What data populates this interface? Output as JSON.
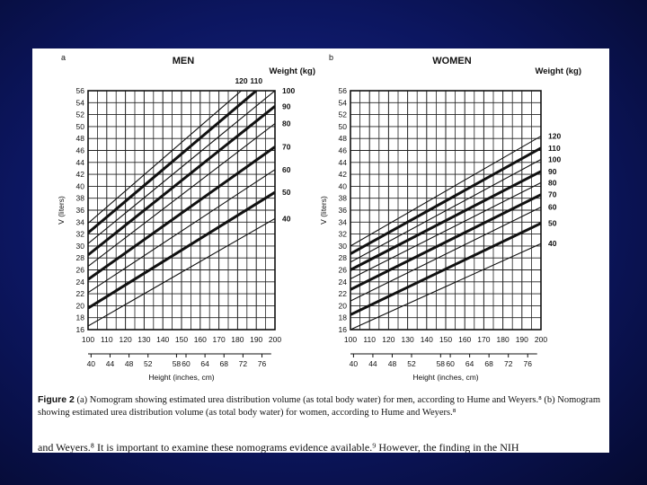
{
  "colors": {
    "slide_background": "#0c1660",
    "paper": "#ffffff",
    "ink": "#111111"
  },
  "chart_data": [
    {
      "type": "line",
      "panel_label": "a",
      "title": "MEN",
      "xlabel": "Height (inches, cm)",
      "ylabel": "V (liters)",
      "legend_title": "Weight (kg)",
      "xlim": [
        100,
        200
      ],
      "ylim": [
        16,
        56
      ],
      "x_ticks_cm": [
        "100",
        "110",
        "120",
        "130",
        "140",
        "150",
        "160",
        "170",
        "180",
        "190",
        "200"
      ],
      "x_ticks_inches": [
        "40",
        "44",
        "48",
        "52",
        "58",
        "60",
        "64",
        "68",
        "72",
        "76"
      ],
      "y_ticks": [
        "16",
        "18",
        "20",
        "22",
        "24",
        "26",
        "28",
        "30",
        "32",
        "34",
        "36",
        "38",
        "40",
        "42",
        "44",
        "46",
        "48",
        "50",
        "52",
        "54",
        "56"
      ],
      "grid": true,
      "series": [
        {
          "name": "40",
          "bold": false,
          "x": [
            100,
            200
          ],
          "y": [
            16.6,
            34.6
          ]
        },
        {
          "name": "50",
          "bold": true,
          "x": [
            100,
            200
          ],
          "y": [
            19.6,
            39.0
          ]
        },
        {
          "name": "60",
          "bold": false,
          "x": [
            100,
            200
          ],
          "y": [
            22.2,
            42.8
          ]
        },
        {
          "name": "70",
          "bold": true,
          "x": [
            100,
            200
          ],
          "y": [
            24.4,
            46.6
          ]
        },
        {
          "name": "80",
          "bold": false,
          "x": [
            100,
            200
          ],
          "y": [
            26.6,
            50.5
          ]
        },
        {
          "name": "90",
          "bold": true,
          "x": [
            100,
            200
          ],
          "y": [
            28.5,
            53.4
          ]
        },
        {
          "name": "100",
          "bold": false,
          "x": [
            100,
            200
          ],
          "y": [
            30.4,
            56.0
          ]
        },
        {
          "name": "110",
          "bold": true,
          "x": [
            100,
            190
          ],
          "y": [
            32.2,
            56.0
          ]
        },
        {
          "name": "120",
          "bold": false,
          "x": [
            100,
            182
          ],
          "y": [
            33.8,
            56.0
          ]
        }
      ]
    },
    {
      "type": "line",
      "panel_label": "b",
      "title": "WOMEN",
      "xlabel": "Height (inches, cm)",
      "ylabel": "V (liters)",
      "legend_title": "Weight (kg)",
      "xlim": [
        100,
        200
      ],
      "ylim": [
        16,
        56
      ],
      "x_ticks_cm": [
        "100",
        "110",
        "120",
        "130",
        "140",
        "150",
        "160",
        "170",
        "180",
        "190",
        "200"
      ],
      "x_ticks_inches": [
        "40",
        "44",
        "48",
        "52",
        "58",
        "60",
        "64",
        "68",
        "72",
        "76"
      ],
      "y_ticks": [
        "16",
        "18",
        "20",
        "22",
        "24",
        "26",
        "28",
        "30",
        "32",
        "34",
        "36",
        "38",
        "40",
        "42",
        "44",
        "46",
        "48",
        "50",
        "52",
        "54",
        "56"
      ],
      "grid": true,
      "series": [
        {
          "name": "40",
          "bold": false,
          "x": [
            100,
            200
          ],
          "y": [
            16.0,
            30.4
          ]
        },
        {
          "name": "50",
          "bold": true,
          "x": [
            100,
            200
          ],
          "y": [
            18.5,
            33.8
          ]
        },
        {
          "name": "60",
          "bold": false,
          "x": [
            100,
            200
          ],
          "y": [
            20.8,
            36.5
          ]
        },
        {
          "name": "70",
          "bold": true,
          "x": [
            100,
            200
          ],
          "y": [
            22.7,
            38.6
          ]
        },
        {
          "name": "80",
          "bold": false,
          "x": [
            100,
            200
          ],
          "y": [
            24.5,
            40.6
          ]
        },
        {
          "name": "90",
          "bold": true,
          "x": [
            100,
            200
          ],
          "y": [
            26.0,
            42.5
          ]
        },
        {
          "name": "100",
          "bold": false,
          "x": [
            100,
            200
          ],
          "y": [
            27.3,
            44.5
          ]
        },
        {
          "name": "110",
          "bold": true,
          "x": [
            100,
            200
          ],
          "y": [
            28.7,
            46.4
          ]
        },
        {
          "name": "120",
          "bold": false,
          "x": [
            100,
            200
          ],
          "y": [
            30.0,
            48.4
          ]
        }
      ]
    }
  ],
  "caption": {
    "figure_label": "Figure 2",
    "text": "(a) Nomogram showing estimated urea distribution volume (as total body water) for men, according to Hume and Weyers.⁸ (b) Nomogram showing estimated urea distribution volume (as total body water) for women, according to Hume and Weyers.⁸"
  },
  "trailing_text": "and Weyers.⁸ It is important to examine these nomograms      evidence available.⁹ However, the finding in the NIH"
}
